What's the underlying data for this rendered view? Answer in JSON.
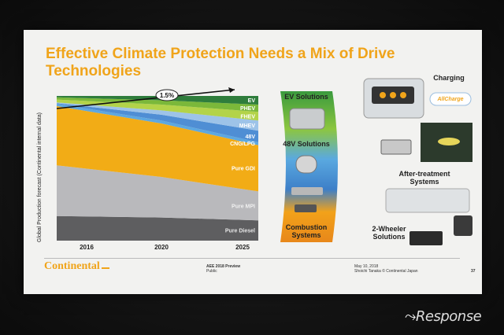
{
  "slide": {
    "title_line1": "Effective Climate Protection Needs a Mix of Drive",
    "title_line2": "Technologies",
    "charging_label": "Charging",
    "allcharge_logo": "AllCharge",
    "ev_solutions": "EV Solutions",
    "v48_solutions": "48V Solutions",
    "combustion_l1": "Combustion",
    "combustion_l2": "Systems",
    "after_l1": "After-treatment",
    "after_l2": "Systems",
    "twowheeler_l1": "2-Wheeler",
    "twowheeler_l2": "Solutions",
    "brand": "Continental",
    "event_l1": "AEE 2018 Preview",
    "event_l2": "Public",
    "date": "May 10, 2018",
    "author": "Shoichi Tanaka © Continental Japan",
    "page_number": "37"
  },
  "watermark": "Response",
  "colors": {
    "orange": "#f0a41a",
    "ev": "#2f7d3c",
    "phev": "#7bb83a",
    "fhev": "#b3d349",
    "mhev": "#9dc3e8",
    "v48": "#4f8ed4",
    "cng": "#5da8e0",
    "gdi": "#f2ac16",
    "mpi": "#b9b9bc",
    "diesel": "#5e5e60"
  },
  "chart_data": {
    "type": "area",
    "stacked": true,
    "x": [
      2016,
      2020,
      2025
    ],
    "xlabel": "",
    "ylabel": "Global Production forecast (Continental internal data)",
    "annotation": "1.5%",
    "series": [
      {
        "name": "Pure Diesel",
        "values": [
          17,
          16,
          14
        ]
      },
      {
        "name": "Pure MPI",
        "values": [
          35,
          28,
          20
        ]
      },
      {
        "name": "Pure GDI",
        "values": [
          41,
          37,
          32
        ]
      },
      {
        "name": "CNG/LPG",
        "values": [
          1.5,
          2,
          2
        ]
      },
      {
        "name": "48V",
        "values": [
          0.5,
          4,
          8
        ]
      },
      {
        "name": "MHEV",
        "values": [
          0.5,
          3,
          7
        ]
      },
      {
        "name": "FHEV",
        "values": [
          2,
          4,
          6
        ]
      },
      {
        "name": "PHEV",
        "values": [
          1.5,
          3,
          5
        ]
      },
      {
        "name": "EV",
        "values": [
          1,
          3,
          6
        ]
      }
    ]
  }
}
